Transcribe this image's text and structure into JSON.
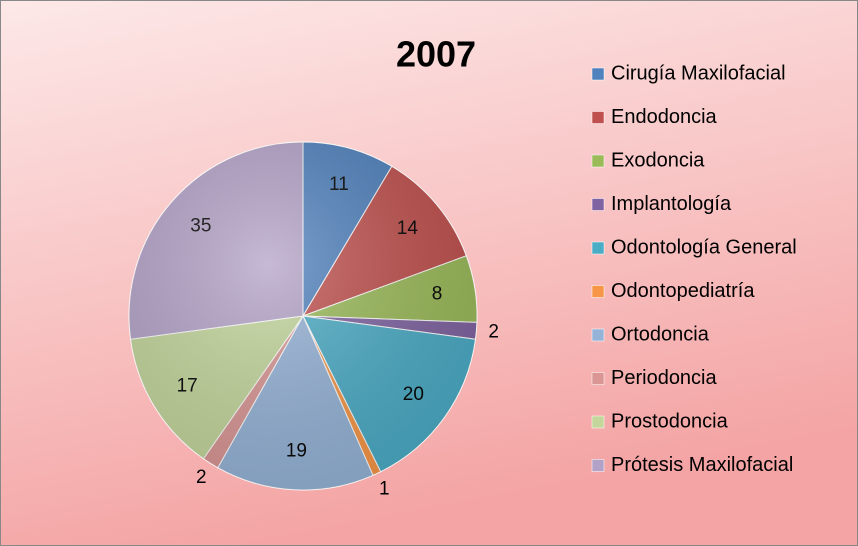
{
  "chart_data": {
    "type": "pie",
    "title": "2007",
    "categories": [
      "Cirugía Maxilofacial",
      "Endodoncia",
      "Exodoncia",
      "Implantología",
      "Odontología General",
      "Odontopediatría",
      "Ortodoncia",
      "Periodoncia",
      "Prostodoncia",
      "Prótesis Maxilofacial"
    ],
    "values": [
      11,
      14,
      8,
      2,
      20,
      1,
      19,
      2,
      17,
      35
    ],
    "colors": [
      "#4f81bd",
      "#c0504d",
      "#9bbb59",
      "#8064a2",
      "#4bacc6",
      "#f79646",
      "#95b3d7",
      "#d99694",
      "#c3d69b",
      "#b3a2c7"
    ],
    "legend": "right"
  }
}
